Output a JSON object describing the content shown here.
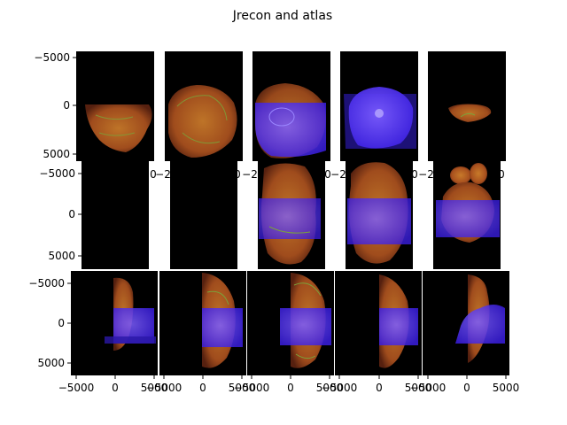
{
  "figure": {
    "title": "Jrecon and atlas"
  },
  "chart_data": {
    "type": "image_grid",
    "title": "Jrecon and atlas",
    "rows": 3,
    "cols": 5,
    "colors": {
      "background": "#000000",
      "tissue": "#a8501e",
      "tissue_highlight": "#c87a2a",
      "fiber_tracts": "#7aa23a",
      "atlas_overlay": "#4e2cff"
    },
    "row_axes": [
      {
        "y_ticks": [
          -5000,
          0,
          5000
        ],
        "y_range": [
          -5600,
          5600
        ],
        "x_tick_labels_visible": [
          "−2",
          "0",
          "−2",
          "0",
          "−2",
          "0",
          "−2",
          "0",
          "−2",
          "0"
        ],
        "tick_labels_overlapped": true
      },
      {
        "y_ticks": [
          -5000,
          0,
          5000
        ],
        "y_range": [
          -6500,
          6500
        ],
        "tick_labels_overlapped": true
      },
      {
        "y_ticks": [
          -5000,
          0,
          5000
        ],
        "y_range": [
          -6500,
          6500
        ],
        "x_ticks": [
          -5000,
          0,
          5000
        ],
        "x_tick_labels": [
          "−5000",
          "0",
          "5000",
          "−5000",
          "0",
          "5000",
          "−5000",
          "0",
          "5000",
          "−5000",
          "0",
          "5000",
          "−5000",
          "0",
          "5000"
        ]
      }
    ],
    "y_tick_labels": [
      "−5000",
      "0",
      "5000",
      "−5000",
      "0",
      "5000",
      "−5000",
      "0",
      "5000"
    ],
    "panels": [
      {
        "row": 0,
        "col": 0,
        "tissue": true,
        "atlas": false
      },
      {
        "row": 0,
        "col": 1,
        "tissue": true,
        "atlas": false
      },
      {
        "row": 0,
        "col": 2,
        "tissue": true,
        "atlas": true
      },
      {
        "row": 0,
        "col": 3,
        "tissue": true,
        "atlas": true
      },
      {
        "row": 0,
        "col": 4,
        "tissue": true,
        "atlas": false
      },
      {
        "row": 1,
        "col": 0,
        "tissue": false,
        "atlas": false
      },
      {
        "row": 1,
        "col": 1,
        "tissue": false,
        "atlas": false
      },
      {
        "row": 1,
        "col": 2,
        "tissue": true,
        "atlas": true
      },
      {
        "row": 1,
        "col": 3,
        "tissue": true,
        "atlas": true
      },
      {
        "row": 1,
        "col": 4,
        "tissue": true,
        "atlas": true
      },
      {
        "row": 2,
        "col": 0,
        "tissue": true,
        "atlas": true
      },
      {
        "row": 2,
        "col": 1,
        "tissue": true,
        "atlas": true
      },
      {
        "row": 2,
        "col": 2,
        "tissue": true,
        "atlas": true
      },
      {
        "row": 2,
        "col": 3,
        "tissue": true,
        "atlas": true
      },
      {
        "row": 2,
        "col": 4,
        "tissue": true,
        "atlas": true
      }
    ]
  }
}
